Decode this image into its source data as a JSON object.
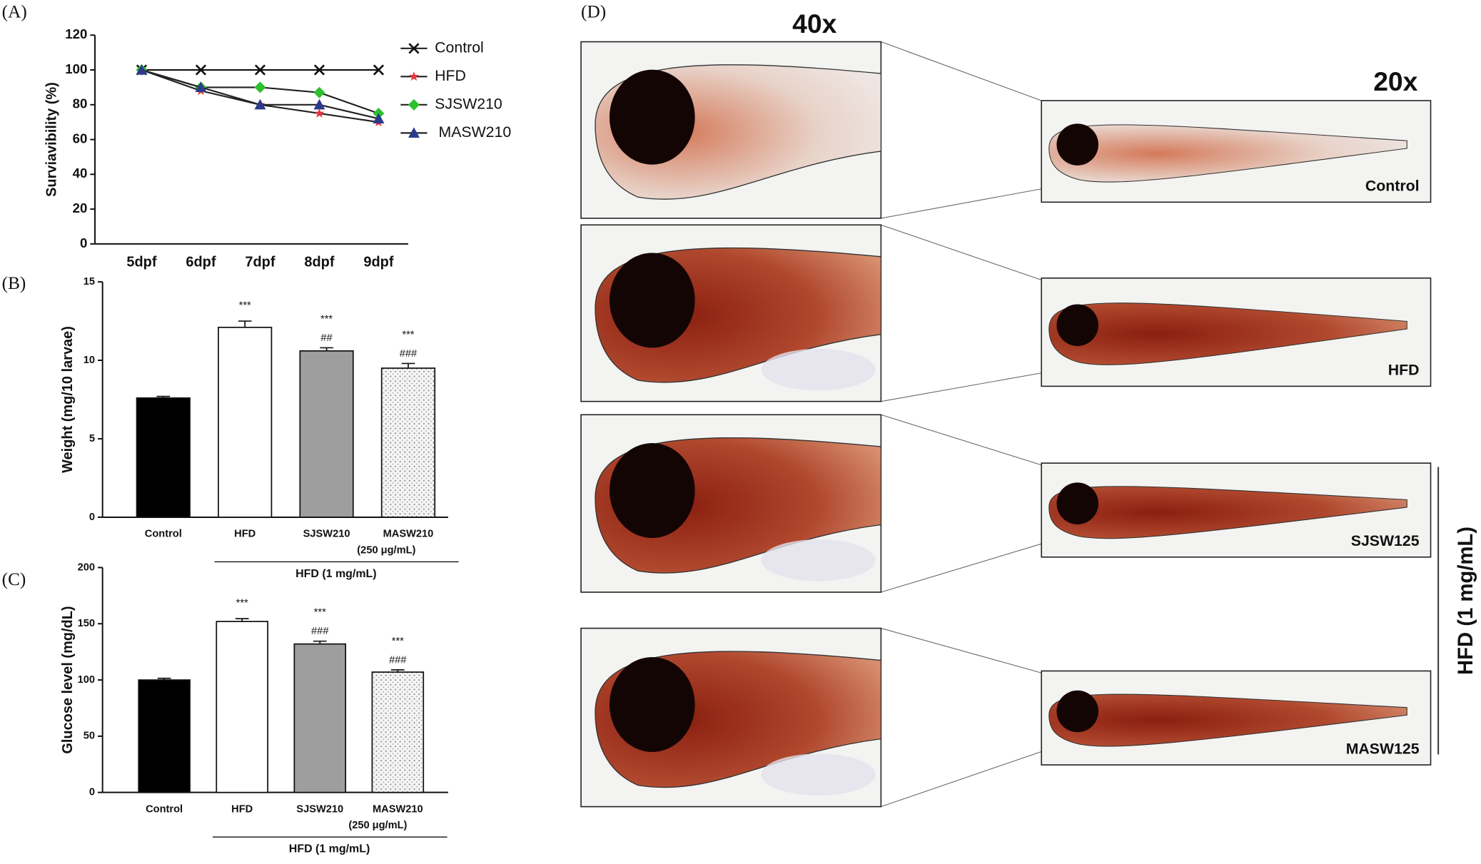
{
  "panel_labels": [
    "(A)",
    "(B)",
    "(C)",
    "(D)"
  ],
  "chart_data": [
    {
      "type": "line",
      "ylabel": "Surviavibility (%)",
      "categories": [
        "5dpf",
        "6dpf",
        "7dpf",
        "8dpf",
        "9dpf"
      ],
      "series": [
        {
          "name": "Control",
          "color": "#111111",
          "marker": "x",
          "values": [
            100,
            100,
            100,
            100,
            100
          ]
        },
        {
          "name": "HFD",
          "color": "#e8343a",
          "marker": "star",
          "values": [
            100,
            88,
            80,
            75,
            70
          ]
        },
        {
          "name": "SJSW210",
          "color": "#2ec02e",
          "marker": "diamond",
          "values": [
            100,
            90,
            90,
            87,
            75
          ]
        },
        {
          "name": "MASW210",
          "color": "#2c3a8c",
          "marker": "triangle",
          "values": [
            100,
            90,
            80,
            80,
            72
          ]
        }
      ],
      "ylim": [
        0,
        120
      ],
      "yticks": [
        0,
        20,
        40,
        60,
        80,
        100,
        120
      ],
      "legend": "right"
    },
    {
      "type": "bar",
      "ylabel": "Weight (mg/10 larvae)",
      "categories": [
        "Control",
        "HFD",
        "SJSW210",
        "MASW210"
      ],
      "values": [
        7.6,
        12.1,
        10.6,
        9.5
      ],
      "errors": [
        0.1,
        0.4,
        0.2,
        0.3
      ],
      "colors": [
        "#000000",
        "#ffffff",
        "#9e9e9e",
        "#f2f2f2"
      ],
      "dotted": [
        false,
        false,
        false,
        true
      ],
      "star_labels": [
        null,
        "***",
        "***",
        "***"
      ],
      "hash_labels": [
        null,
        null,
        "##",
        "###"
      ],
      "dose_label": "(250 μg/mL)",
      "group_label": "HFD (1 mg/mL)",
      "ylim": [
        0,
        15
      ],
      "yticks": [
        0,
        5,
        10,
        15
      ]
    },
    {
      "type": "bar",
      "ylabel": "Glucose level (mg/dL)",
      "categories": [
        "Control",
        "HFD",
        "SJSW210",
        "MASW210"
      ],
      "values": [
        100,
        152,
        132,
        107
      ],
      "errors": [
        1.5,
        2.5,
        2.5,
        2
      ],
      "colors": [
        "#000000",
        "#ffffff",
        "#9e9e9e",
        "#f2f2f2"
      ],
      "dotted": [
        false,
        false,
        false,
        true
      ],
      "star_labels": [
        null,
        "***",
        "***",
        "***"
      ],
      "hash_labels": [
        null,
        null,
        "###",
        "###"
      ],
      "dose_label": "(250 μg/mL)",
      "group_label": "HFD (1 mg/mL)",
      "ylim": [
        0,
        200
      ],
      "yticks": [
        0,
        50,
        100,
        150,
        200
      ]
    }
  ],
  "images": {
    "magnifications": [
      "40x",
      "20x"
    ],
    "groups": [
      "Control",
      "HFD",
      "SJSW125",
      "MASW125"
    ],
    "bracket_label": "HFD (1 mg/mL)"
  }
}
